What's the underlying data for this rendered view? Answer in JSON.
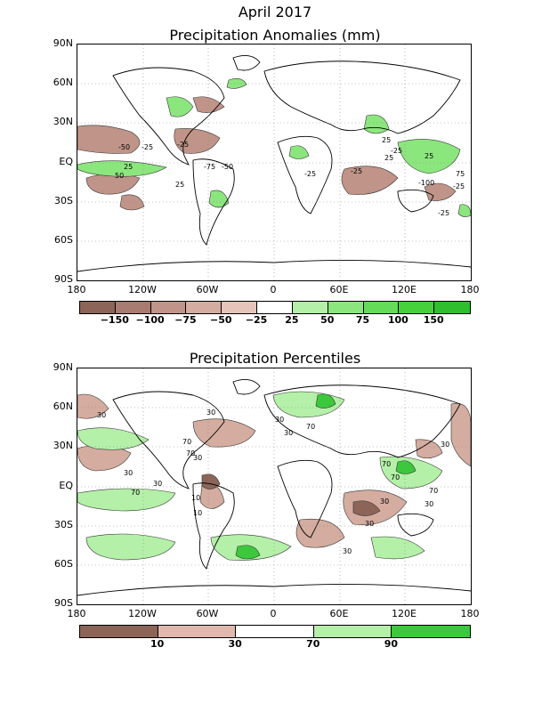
{
  "title": "April 2017",
  "panels": [
    {
      "id": "anomalies",
      "title": "Precipitation Anomalies (mm)",
      "legend": {
        "colors": [
          "#8c6458",
          "#a87c70",
          "#c09488",
          "#d4aca0",
          "#e6c4ba",
          "#ffffff",
          "#b4f0a8",
          "#8ce67e",
          "#64dc5a",
          "#46d03c",
          "#2ebe2e"
        ],
        "labels": [
          "−150",
          "−100",
          "−75",
          "−50",
          "−25",
          "25",
          "50",
          "75",
          "100",
          "150"
        ]
      },
      "contour_labels": [
        "-50",
        "-25",
        "-25",
        "25",
        "-75",
        "-50",
        "50",
        "-25",
        "-25",
        "25",
        "-25",
        "25",
        "25",
        "75",
        "-100",
        "-25",
        "-25",
        "25"
      ]
    },
    {
      "id": "percentiles",
      "title": "Precipitation Percentiles",
      "legend": {
        "colors": [
          "#8c6458",
          "#e0b8ae",
          "#ffffff",
          "#b4f0a8",
          "#3cc83c"
        ],
        "labels": [
          "10",
          "30",
          "70",
          "90"
        ]
      },
      "contour_labels": [
        "30",
        "30",
        "70",
        "30",
        "70",
        "30",
        "70",
        "30",
        "10",
        "30",
        "70",
        "30",
        "70",
        "70",
        "30",
        "30",
        "30",
        "30",
        "10",
        "70",
        "30"
      ]
    }
  ],
  "axes": {
    "lat_labels": [
      "90N",
      "60N",
      "30N",
      "EQ",
      "30S",
      "60S",
      "90S"
    ],
    "lon_labels": [
      "180",
      "120W",
      "60W",
      "0",
      "60E",
      "120E",
      "180"
    ]
  }
}
